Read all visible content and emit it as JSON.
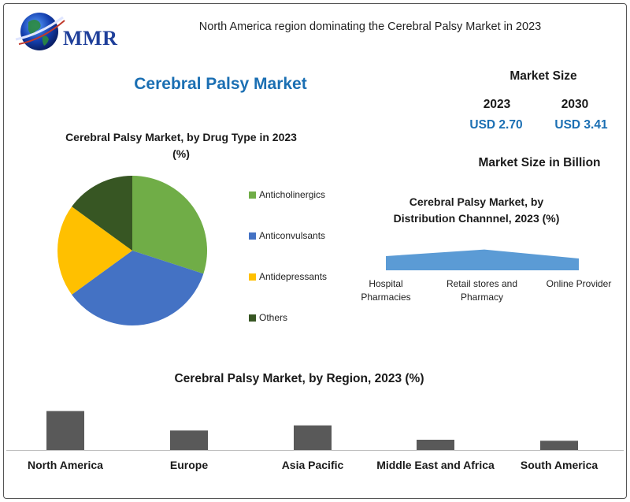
{
  "header": {
    "logo_text": "MMR",
    "headline": "North America region dominating the Cerebral Palsy Market in 2023"
  },
  "main_title": "Cerebral Palsy Market",
  "market_size": {
    "title": "Market Size",
    "year1": "2023",
    "value1": "USD 2.70",
    "year2": "2030",
    "value2": "USD 3.41",
    "unit_label": "Market Size in Billion"
  },
  "colors": {
    "accent_blue": "#1b6fb3",
    "pie": [
      "#70ad47",
      "#4472c4",
      "#ffc000",
      "#375623"
    ],
    "area": "#5b9bd5",
    "bar": "#595959"
  },
  "chart_data": [
    {
      "type": "pie",
      "title": "Cerebral  Palsy Market, by Drug Type  in 2023",
      "subtitle": "(%)",
      "categories": [
        "Anticholinergics",
        "Anticonvulsants",
        "Antidepressants",
        "Others"
      ],
      "values": [
        30,
        35,
        20,
        15
      ],
      "legend": "right"
    },
    {
      "type": "area",
      "title": "Cerebral  Palsy Market, by",
      "title_line2": "Distribution  Channnel, 2023 (%)",
      "categories": [
        "Hospital Pharmacies",
        "Retail stores and Pharmacy",
        "Online Provider"
      ],
      "category_lines": [
        [
          "Hospital",
          "Pharmacies"
        ],
        [
          "Retail stores and",
          "Pharmacy"
        ],
        [
          "Online Provider"
        ]
      ],
      "values": [
        30,
        44,
        25
      ]
    },
    {
      "type": "bar",
      "title": "Cerebral Palsy Market, by Region, 2023 (%)",
      "categories": [
        "North America",
        "Europe",
        "Asia Pacific",
        "Middle East and Africa",
        "South America"
      ],
      "values": [
        38,
        19,
        24,
        10,
        9
      ]
    }
  ]
}
